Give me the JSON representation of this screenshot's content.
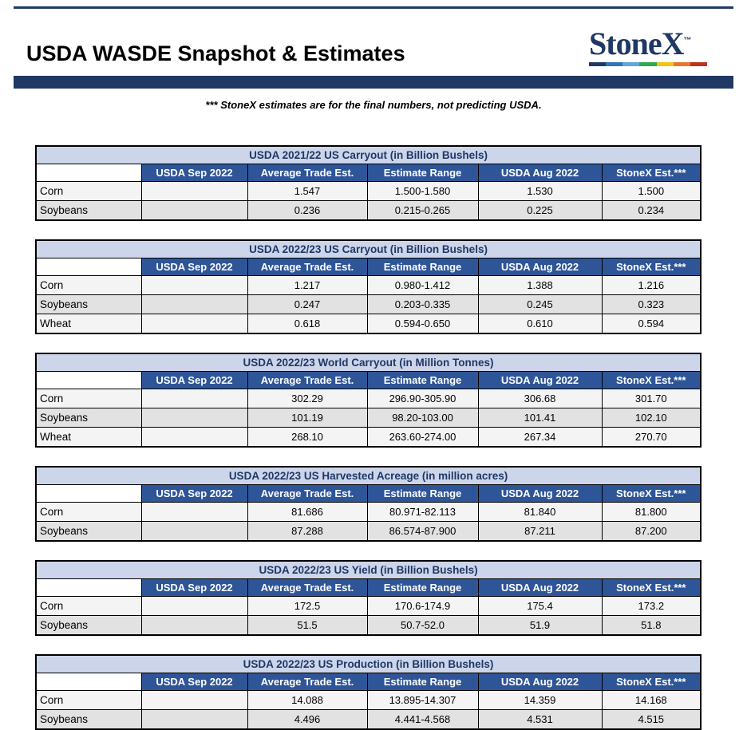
{
  "page": {
    "title": "USDA WASDE Snapshot & Estimates",
    "disclaimer": "*** StoneX estimates are for the final numbers, not predicting USDA.",
    "logo": {
      "text": "StoneX",
      "tm": "™"
    }
  },
  "colors": {
    "navy_bar": "#1F3864",
    "table_title_bg": "#CDD5EA",
    "table_title_text": "#1F3864",
    "header_bg": "#2E5597",
    "header_text": "#FFFFFF",
    "row_odd": "#F4F4F4",
    "row_even": "#E2E2E2",
    "logo_text": "#1F3864",
    "logo_bar": [
      "#1F3864",
      "#2E75B6",
      "#5BA8D8",
      "#2FA84F",
      "#F2C511",
      "#E8762C",
      "#C13018"
    ]
  },
  "columns": [
    "",
    "USDA Sep 2022",
    "Average Trade Est.",
    "Estimate Range",
    "USDA Aug 2022",
    "StoneX Est.***"
  ],
  "tables": [
    {
      "title": "USDA 2021/22 US Carryout (in Billion Bushels)",
      "rows": [
        [
          "Corn",
          "",
          "1.547",
          "1.500-1.580",
          "1.530",
          "1.500"
        ],
        [
          "Soybeans",
          "",
          "0.236",
          "0.215-0.265",
          "0.225",
          "0.234"
        ]
      ]
    },
    {
      "title": "USDA 2022/23 US Carryout (in Billion Bushels)",
      "rows": [
        [
          "Corn",
          "",
          "1.217",
          "0.980-1.412",
          "1.388",
          "1.216"
        ],
        [
          "Soybeans",
          "",
          "0.247",
          "0.203-0.335",
          "0.245",
          "0.323"
        ],
        [
          "Wheat",
          "",
          "0.618",
          "0.594-0.650",
          "0.610",
          "0.594"
        ]
      ]
    },
    {
      "title": "USDA 2022/23 World Carryout (in Million Tonnes)",
      "rows": [
        [
          "Corn",
          "",
          "302.29",
          "296.90-305.90",
          "306.68",
          "301.70"
        ],
        [
          "Soybeans",
          "",
          "101.19",
          "98.20-103.00",
          "101.41",
          "102.10"
        ],
        [
          "Wheat",
          "",
          "268.10",
          "263.60-274.00",
          "267.34",
          "270.70"
        ]
      ]
    },
    {
      "title": "USDA 2022/23 US Harvested Acreage (in million acres)",
      "rows": [
        [
          "Corn",
          "",
          "81.686",
          "80.971-82.113",
          "81.840",
          "81.800"
        ],
        [
          "Soybeans",
          "",
          "87.288",
          "86.574-87.900",
          "87.211",
          "87.200"
        ]
      ]
    },
    {
      "title": "USDA 2022/23 US Yield (in Billion Bushels)",
      "rows": [
        [
          "Corn",
          "",
          "172.5",
          "170.6-174.9",
          "175.4",
          "173.2"
        ],
        [
          "Soybeans",
          "",
          "51.5",
          "50.7-52.0",
          "51.9",
          "51.8"
        ]
      ]
    },
    {
      "title": "USDA 2022/23 US Production (in Billion Bushels)",
      "rows": [
        [
          "Corn",
          "",
          "14.088",
          "13.895-14.307",
          "14.359",
          "14.168"
        ],
        [
          "Soybeans",
          "",
          "4.496",
          "4.441-4.568",
          "4.531",
          "4.515"
        ]
      ]
    }
  ]
}
